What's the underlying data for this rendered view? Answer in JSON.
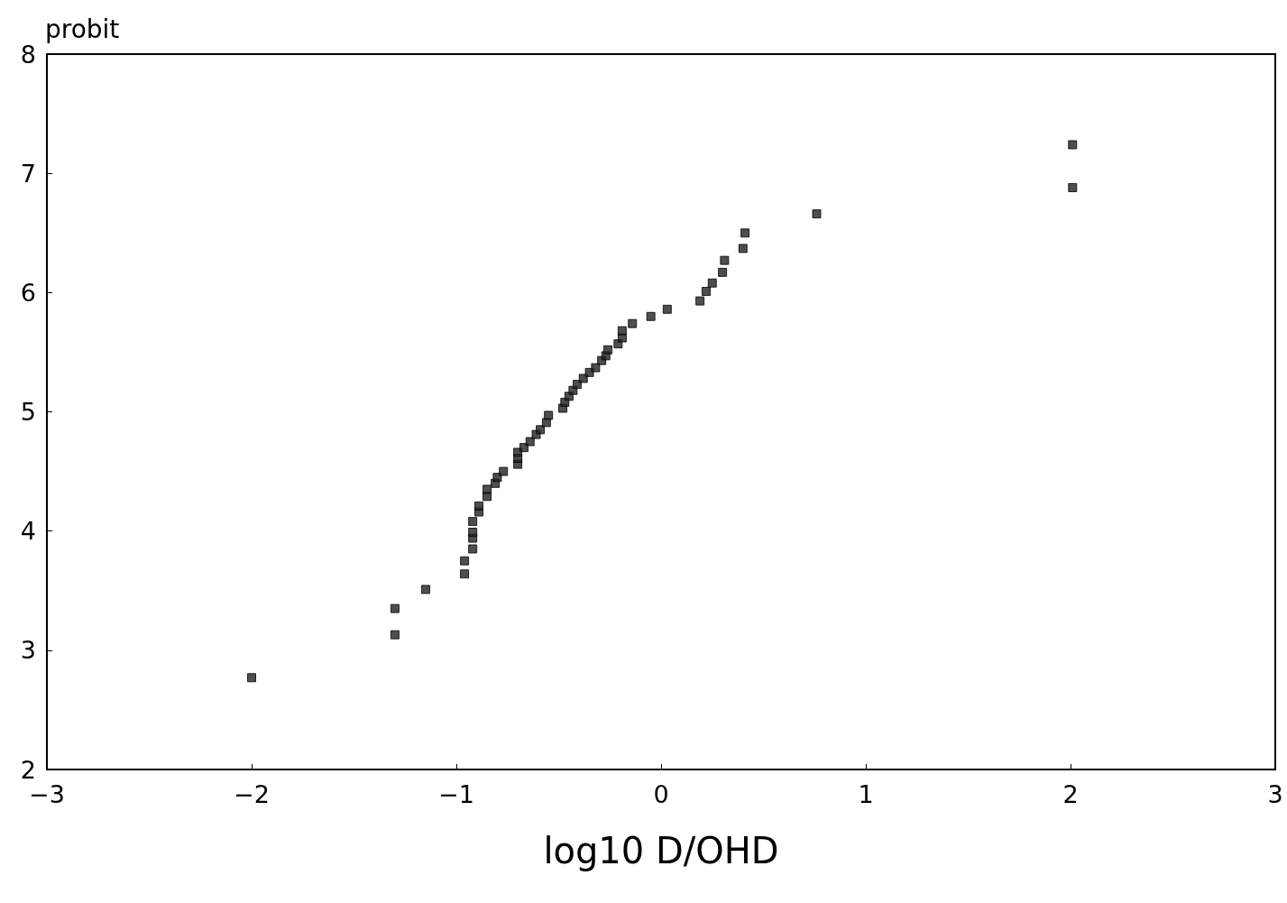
{
  "chart_data": {
    "type": "scatter",
    "xlabel": "log10 D/OHD",
    "ylabel": "probit",
    "marker": "square",
    "grid": false,
    "xlim": [
      -3,
      3
    ],
    "xticks": [
      -3,
      -2,
      -1,
      0,
      1,
      2,
      3
    ],
    "ylim": [
      2,
      8
    ],
    "yticks": [
      2,
      3,
      4,
      5,
      6,
      7,
      8
    ],
    "series": [
      {
        "color": "#222222",
        "x": [
          -2.0,
          -1.3,
          -1.3,
          -1.15,
          -0.96,
          -0.96,
          -0.92,
          -0.92,
          -0.92,
          -0.92,
          -0.89,
          -0.89,
          -0.85,
          -0.85,
          -0.81,
          -0.8,
          -0.77,
          -0.7,
          -0.7,
          -0.7,
          -0.67,
          -0.64,
          -0.61,
          -0.59,
          -0.56,
          -0.55,
          -0.48,
          -0.47,
          -0.45,
          -0.43,
          -0.41,
          -0.38,
          -0.35,
          -0.32,
          -0.29,
          -0.27,
          -0.26,
          -0.21,
          -0.19,
          -0.19,
          -0.14,
          -0.05,
          0.03,
          0.19,
          0.22,
          0.25,
          0.3,
          0.31,
          0.4,
          0.41,
          0.76,
          2.01,
          2.01
        ],
        "values": [
          2.77,
          3.13,
          3.35,
          3.51,
          3.64,
          3.75,
          3.85,
          3.94,
          3.99,
          4.08,
          4.16,
          4.21,
          4.29,
          4.35,
          4.4,
          4.45,
          4.5,
          4.56,
          4.61,
          4.66,
          4.7,
          4.75,
          4.81,
          4.85,
          4.91,
          4.97,
          5.03,
          5.08,
          5.13,
          5.18,
          5.23,
          5.28,
          5.33,
          5.37,
          5.43,
          5.47,
          5.52,
          5.57,
          5.62,
          5.68,
          5.74,
          5.8,
          5.86,
          5.93,
          6.01,
          6.08,
          6.17,
          6.27,
          6.37,
          6.5,
          6.66,
          6.88,
          7.24
        ]
      }
    ]
  }
}
